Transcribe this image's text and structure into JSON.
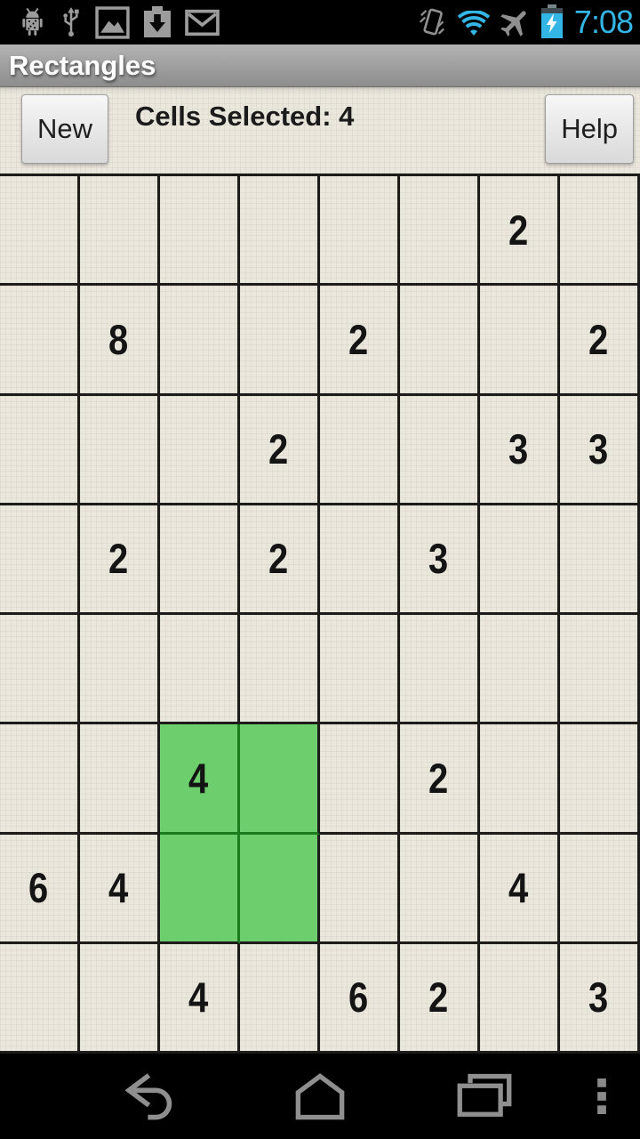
{
  "status_bar": {
    "time": "7:08",
    "accent_blue": "#33b5e5",
    "left_icons": [
      "adb-robot",
      "usb",
      "gallery",
      "download",
      "gmail"
    ],
    "right_icons": [
      "vibrate",
      "wifi",
      "airplane-mode",
      "battery-charging"
    ]
  },
  "title_bar": {
    "title": "Rectangles"
  },
  "toolbar": {
    "new_label": "New",
    "cells_selected_label": "Cells Selected: 4",
    "help_label": "Help"
  },
  "grid": {
    "rows": 8,
    "cols": 8,
    "cell_values": [
      [
        "",
        "",
        "",
        "",
        "",
        "",
        "2",
        ""
      ],
      [
        "",
        "8",
        "",
        "",
        "2",
        "",
        "",
        "2"
      ],
      [
        "",
        "",
        "",
        "2",
        "",
        "",
        "3",
        "3"
      ],
      [
        "",
        "2",
        "",
        "2",
        "",
        "3",
        "",
        ""
      ],
      [
        "",
        "",
        "",
        "",
        "",
        "",
        "",
        ""
      ],
      [
        "",
        "",
        "4",
        "",
        "",
        "2",
        "",
        ""
      ],
      [
        "6",
        "4",
        "",
        "",
        "",
        "",
        "4",
        ""
      ],
      [
        "",
        "",
        "4",
        "",
        "6",
        "2",
        "",
        "3"
      ]
    ],
    "selected_cells": [
      [
        5,
        2
      ],
      [
        5,
        3
      ],
      [
        6,
        2
      ],
      [
        6,
        3
      ]
    ],
    "colors": {
      "cell_bg": "#eae7dd",
      "line": "#1d1c1a",
      "selected_bg": "#6cce6c",
      "selected_line": "#1b7a1b",
      "number": "#141414"
    }
  },
  "nav_bar": {
    "icons": [
      "back",
      "home",
      "recents",
      "menu"
    ]
  }
}
